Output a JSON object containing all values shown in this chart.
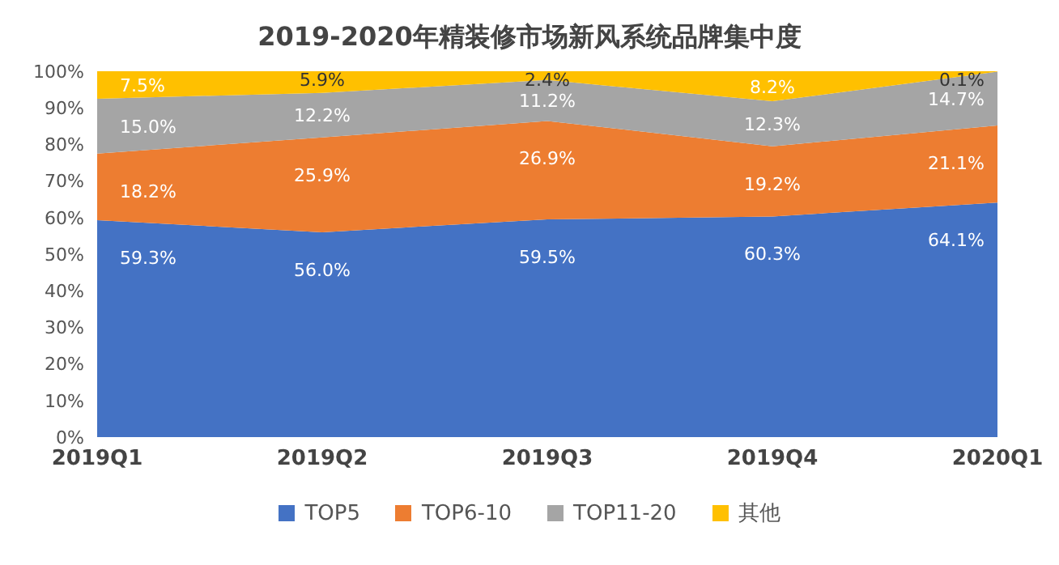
{
  "chart_data": {
    "type": "area",
    "stacked": true,
    "title": "2019-2020年精装修市场新风系统品牌集中度",
    "categories": [
      "2019Q1",
      "2019Q2",
      "2019Q3",
      "2019Q4",
      "2020Q1"
    ],
    "series": [
      {
        "name": "TOP5",
        "color": "#4472c4",
        "values": [
          59.3,
          56.0,
          59.5,
          60.3,
          64.1
        ],
        "value_labels": [
          "59.3%",
          "56.0%",
          "59.5%",
          "60.3%",
          "64.1%"
        ]
      },
      {
        "name": "TOP6-10",
        "color": "#ed7d31",
        "values": [
          18.2,
          25.9,
          26.9,
          19.2,
          21.1
        ],
        "value_labels": [
          "18.2%",
          "25.9%",
          "26.9%",
          "19.2%",
          "21.1%"
        ]
      },
      {
        "name": "TOP11-20",
        "color": "#a5a5a5",
        "values": [
          15.0,
          12.2,
          11.2,
          12.3,
          14.7
        ],
        "value_labels": [
          "15.0%",
          "12.2%",
          "11.2%",
          "12.3%",
          "14.7%"
        ]
      },
      {
        "name": "其他",
        "color": "#ffc000",
        "values": [
          7.5,
          5.9,
          2.4,
          8.2,
          0.1
        ],
        "value_labels": [
          "7.5%",
          "5.9%",
          "2.4%",
          "8.2%",
          "0.1%"
        ]
      }
    ],
    "ylim": [
      0,
      100
    ],
    "yticks": [
      {
        "value": 0,
        "label": "0%"
      },
      {
        "value": 10,
        "label": "10%"
      },
      {
        "value": 20,
        "label": "20%"
      },
      {
        "value": 30,
        "label": "30%"
      },
      {
        "value": 40,
        "label": "40%"
      },
      {
        "value": 50,
        "label": "50%"
      },
      {
        "value": 60,
        "label": "60%"
      },
      {
        "value": 70,
        "label": "70%"
      },
      {
        "value": 80,
        "label": "80%"
      },
      {
        "value": 90,
        "label": "90%"
      },
      {
        "value": 100,
        "label": "100%"
      }
    ],
    "legend": "bottom"
  }
}
